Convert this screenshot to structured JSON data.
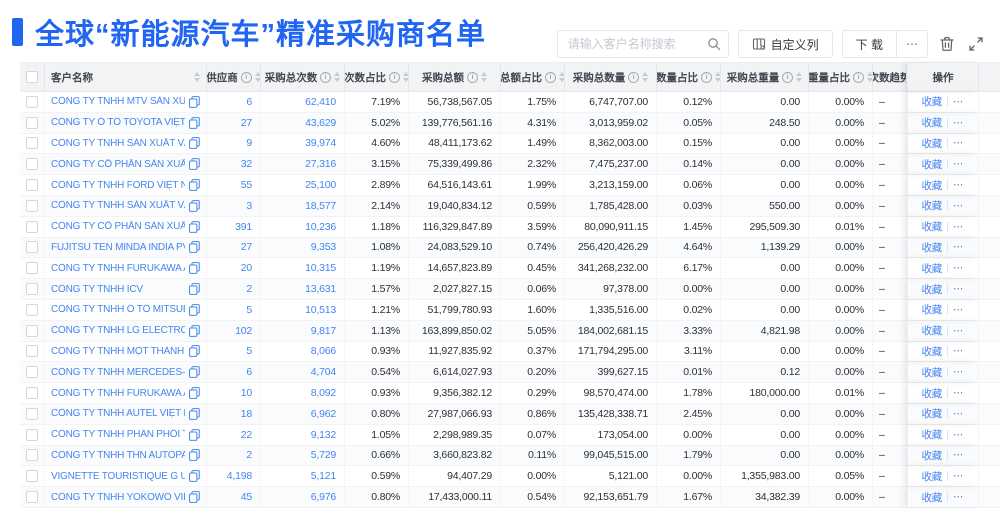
{
  "page": {
    "title": "全球“新能源汽车”精准采购商名单",
    "accent_color": "#2166F2",
    "link_color": "#4585F0"
  },
  "toolbar": {
    "search_placeholder": "请输入客户名称搜索",
    "customize_columns_label": "自定义列",
    "download_label": "下 载",
    "more_label": "⋯"
  },
  "table": {
    "op_favorite": "收藏",
    "op_more": "⋯",
    "columns": [
      {
        "key": "name",
        "label": "客户名称",
        "info": false,
        "sort": true
      },
      {
        "key": "supplier",
        "label": "供应商",
        "info": true,
        "sort": true
      },
      {
        "key": "purchase_count",
        "label": "采购总次数",
        "info": true,
        "sort": true
      },
      {
        "key": "count_pct",
        "label": "次数占比",
        "info": true,
        "sort": true
      },
      {
        "key": "amount",
        "label": "采购总额",
        "info": true,
        "sort": true
      },
      {
        "key": "amount_pct",
        "label": "总额占比",
        "info": true,
        "sort": true
      },
      {
        "key": "quantity",
        "label": "采购总数量",
        "info": true,
        "sort": true
      },
      {
        "key": "quantity_pct",
        "label": "数量占比",
        "info": true,
        "sort": true
      },
      {
        "key": "weight",
        "label": "采购总重量",
        "info": true,
        "sort": true
      },
      {
        "key": "weight_pct",
        "label": "重量占比",
        "info": true,
        "sort": true
      },
      {
        "key": "trend",
        "label": "次数趋势",
        "info": false,
        "sort": false
      },
      {
        "key": "ops",
        "label": "操作",
        "info": false,
        "sort": false
      }
    ],
    "rows": [
      {
        "name": "CÔNG TY TNHH MTV SẢN XUẤ...",
        "supplier": "6",
        "purchase_count": "62,410",
        "count_pct": "7.19%",
        "amount": "56,738,567.05",
        "amount_pct": "1.75%",
        "quantity": "6,747,707.00",
        "quantity_pct": "0.12%",
        "weight": "0.00",
        "weight_pct": "0.00%",
        "trend": "–"
      },
      {
        "name": "CÔNG TY Ô TÔ TOYOTA VIỆT ...",
        "supplier": "27",
        "purchase_count": "43,629",
        "count_pct": "5.02%",
        "amount": "139,776,561.16",
        "amount_pct": "4.31%",
        "quantity": "3,013,959.02",
        "quantity_pct": "0.05%",
        "weight": "248.50",
        "weight_pct": "0.00%",
        "trend": "–"
      },
      {
        "name": "CÔNG TY TNHH SẢN XUẤT VÀ ...",
        "supplier": "9",
        "purchase_count": "39,974",
        "count_pct": "4.60%",
        "amount": "48,411,173.62",
        "amount_pct": "1.49%",
        "quantity": "8,362,003.00",
        "quantity_pct": "0.15%",
        "weight": "0.00",
        "weight_pct": "0.00%",
        "trend": "–"
      },
      {
        "name": "CÔNG TY CỔ PHẦN SẢN XUẤT...",
        "supplier": "32",
        "purchase_count": "27,316",
        "count_pct": "3.15%",
        "amount": "75,339,499.86",
        "amount_pct": "2.32%",
        "quantity": "7,475,237.00",
        "quantity_pct": "0.14%",
        "weight": "0.00",
        "weight_pct": "0.00%",
        "trend": "–"
      },
      {
        "name": "CÔNG TY TNHH FORD VIỆT NAM",
        "supplier": "55",
        "purchase_count": "25,100",
        "count_pct": "2.89%",
        "amount": "64,516,143.61",
        "amount_pct": "1.99%",
        "quantity": "3,213,159.00",
        "quantity_pct": "0.06%",
        "weight": "0.00",
        "weight_pct": "0.00%",
        "trend": "–"
      },
      {
        "name": "CÔNG TY TNHH SẢN XUẤT VÀ ...",
        "supplier": "3",
        "purchase_count": "18,577",
        "count_pct": "2.14%",
        "amount": "19,040,834.12",
        "amount_pct": "0.59%",
        "quantity": "1,785,428.00",
        "quantity_pct": "0.03%",
        "weight": "550.00",
        "weight_pct": "0.00%",
        "trend": "–"
      },
      {
        "name": "CÔNG TY CỔ PHẦN SẢN XUẤT...",
        "supplier": "391",
        "purchase_count": "10,236",
        "count_pct": "1.18%",
        "amount": "116,329,847.89",
        "amount_pct": "3.59%",
        "quantity": "80,090,911.15",
        "quantity_pct": "1.45%",
        "weight": "295,509.30",
        "weight_pct": "0.01%",
        "trend": "–"
      },
      {
        "name": "FUJITSU TEN MINDA INDIA PVT...",
        "supplier": "27",
        "purchase_count": "9,353",
        "count_pct": "1.08%",
        "amount": "24,083,529.10",
        "amount_pct": "0.74%",
        "quantity": "256,420,426.29",
        "quantity_pct": "4.64%",
        "weight": "1,139.29",
        "weight_pct": "0.00%",
        "trend": "–"
      },
      {
        "name": "CÔNG TY TNHH FURUKAWA A...",
        "supplier": "20",
        "purchase_count": "10,315",
        "count_pct": "1.19%",
        "amount": "14,657,823.89",
        "amount_pct": "0.45%",
        "quantity": "341,268,232.00",
        "quantity_pct": "6.17%",
        "weight": "0.00",
        "weight_pct": "0.00%",
        "trend": "–"
      },
      {
        "name": "CÔNG TY TNHH ICV",
        "supplier": "2",
        "purchase_count": "13,631",
        "count_pct": "1.57%",
        "amount": "2,027,827.15",
        "amount_pct": "0.06%",
        "quantity": "97,378.00",
        "quantity_pct": "0.00%",
        "weight": "0.00",
        "weight_pct": "0.00%",
        "trend": "–"
      },
      {
        "name": "CÔNG TY TNHH Ô TÔ MITSUBI...",
        "supplier": "5",
        "purchase_count": "10,513",
        "count_pct": "1.21%",
        "amount": "51,799,780.93",
        "amount_pct": "1.60%",
        "quantity": "1,335,516.00",
        "quantity_pct": "0.02%",
        "weight": "0.00",
        "weight_pct": "0.00%",
        "trend": "–"
      },
      {
        "name": "CÔNG TY TNHH LG ELECTRON...",
        "supplier": "102",
        "purchase_count": "9,817",
        "count_pct": "1.13%",
        "amount": "163,899,850.02",
        "amount_pct": "5.05%",
        "quantity": "184,002,681.15",
        "quantity_pct": "3.33%",
        "weight": "4,821.98",
        "weight_pct": "0.00%",
        "trend": "–"
      },
      {
        "name": "CÔNG TY TNHH MỘT THÀNH V...",
        "supplier": "5",
        "purchase_count": "8,066",
        "count_pct": "0.93%",
        "amount": "11,927,835.92",
        "amount_pct": "0.37%",
        "quantity": "171,794,295.00",
        "quantity_pct": "3.11%",
        "weight": "0.00",
        "weight_pct": "0.00%",
        "trend": "–"
      },
      {
        "name": "CÔNG TY TNHH MERCEDES–B...",
        "supplier": "6",
        "purchase_count": "4,704",
        "count_pct": "0.54%",
        "amount": "6,614,027.93",
        "amount_pct": "0.20%",
        "quantity": "399,627.15",
        "quantity_pct": "0.01%",
        "weight": "0.12",
        "weight_pct": "0.00%",
        "trend": "–"
      },
      {
        "name": "CÔNG TY TNHH FURUKAWA A...",
        "supplier": "10",
        "purchase_count": "8,092",
        "count_pct": "0.93%",
        "amount": "9,356,382.12",
        "amount_pct": "0.29%",
        "quantity": "98,570,474.00",
        "quantity_pct": "1.78%",
        "weight": "180,000.00",
        "weight_pct": "0.01%",
        "trend": "–"
      },
      {
        "name": "CÔNG TY TNHH AUTEL VIỆT N...",
        "supplier": "18",
        "purchase_count": "6,962",
        "count_pct": "0.80%",
        "amount": "27,987,066.93",
        "amount_pct": "0.86%",
        "quantity": "135,428,338.71",
        "quantity_pct": "2.45%",
        "weight": "0.00",
        "weight_pct": "0.00%",
        "trend": "–"
      },
      {
        "name": "CÔNG TY TNHH PHÂN PHỐI T...",
        "supplier": "22",
        "purchase_count": "9,132",
        "count_pct": "1.05%",
        "amount": "2,298,989.35",
        "amount_pct": "0.07%",
        "quantity": "173,054.00",
        "quantity_pct": "0.00%",
        "weight": "0.00",
        "weight_pct": "0.00%",
        "trend": "–"
      },
      {
        "name": "CÔNG TY TNHH THN AUTOPAR...",
        "supplier": "2",
        "purchase_count": "5,729",
        "count_pct": "0.66%",
        "amount": "3,660,823.82",
        "amount_pct": "0.11%",
        "quantity": "99,045,515.00",
        "quantity_pct": "1.79%",
        "weight": "0.00",
        "weight_pct": "0.00%",
        "trend": "–"
      },
      {
        "name": "VIGNETTE TOURISTIQUE G UNI...",
        "supplier": "4,198",
        "purchase_count": "5,121",
        "count_pct": "0.59%",
        "amount": "94,407.29",
        "amount_pct": "0.00%",
        "quantity": "5,121.00",
        "quantity_pct": "0.00%",
        "weight": "1,355,983.00",
        "weight_pct": "0.05%",
        "trend": "–"
      },
      {
        "name": "CÔNG TY TNHH YOKOWO VIỆT...",
        "supplier": "45",
        "purchase_count": "6,976",
        "count_pct": "0.80%",
        "amount": "17,433,000.11",
        "amount_pct": "0.54%",
        "quantity": "92,153,651.79",
        "quantity_pct": "1.67%",
        "weight": "34,382.39",
        "weight_pct": "0.00%",
        "trend": "–"
      }
    ]
  }
}
